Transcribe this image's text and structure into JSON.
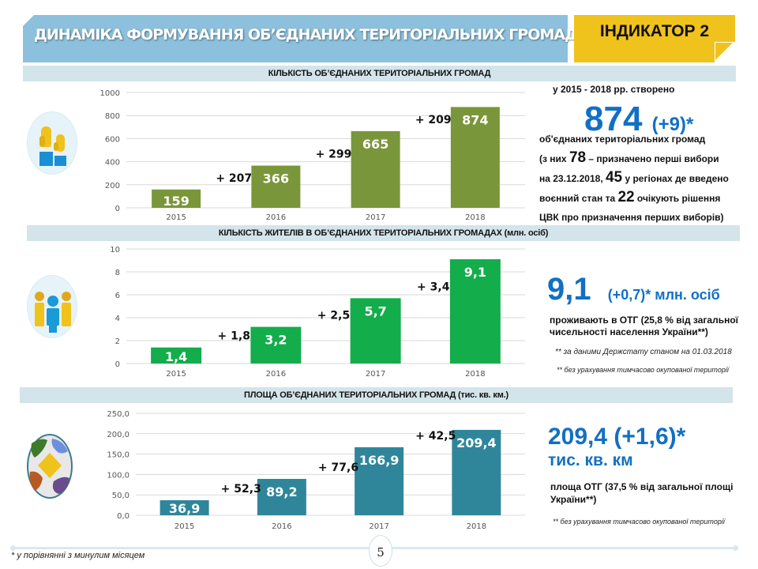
{
  "header": {
    "title": "ДИНАМІКА ФОРМУВАННЯ ОБ’ЄДНАНИХ ТЕРИТОРІАЛЬНИХ ГРОМАД",
    "indicator": "ІНДИКАТОР 2"
  },
  "colors": {
    "banner": "#8cc0dc",
    "indicator": "#f0c21c",
    "section_bar": "#d3e4eb",
    "accent_blue": "#1270c4",
    "bar_olive": "#7a963a",
    "bar_green": "#13ad4b",
    "bar_teal": "#2f869b"
  },
  "sections": [
    {
      "heading": "КІЛЬКІСТЬ ОБ’ЄДНАНИХ ТЕРИТОРІАЛЬНИХ ГРОМАД",
      "icon": "raised-hands-icon",
      "summary": {
        "intro": "у 2015  - 2018  рр. створено",
        "big_value": "874",
        "big_delta": "(+9)*",
        "line1": "об'єднаних територіальних громад",
        "line2_pre": "(з них ",
        "line2_num": "78",
        "line2_post": " –  призначено перші вибори",
        "line3_pre": "на 23.12.2018,  ",
        "line3_num": "45",
        "line3_post": " у регіонах де введено",
        "line4_pre": "воєнний стан та ",
        "line4_num": "22",
        "line4_post": " очікують рішення",
        "line5": "ЦВК про призначення перших виборів)"
      }
    },
    {
      "heading": "КІЛЬКІСТЬ ЖИТЕЛІВ В ОБ’ЄДНАНИХ ТЕРИТОРІАЛЬНИХ ГРОМАДАХ (млн. осіб)",
      "icon": "people-group-icon",
      "summary": {
        "big_value": "9,1",
        "big_suffix": "(+0,7)* млн. осіб",
        "line1": "проживають в ОТГ (25,8 % від загальної",
        "line2": "чисельності  населення України**)",
        "note1": "** за даними Держстату станом на 01.03.2018",
        "note2": "** без урахування тимчасово окупованої території"
      }
    },
    {
      "heading": "ПЛОЩА ОБ’ЄДНАНИХ ТЕРИТОРІАЛЬНИХ ГРОМАД (тис. кв. км.)",
      "icon": "puzzle-map-icon",
      "summary": {
        "big_value": "209,4 (+1,6)*",
        "big_unit": "тис. кв. км",
        "line1": "площа ОТГ (37,5 % від загальної площі",
        "line2": "України**)",
        "note1": "** без урахування тимчасово окупованої території"
      }
    }
  ],
  "chart_data": [
    {
      "type": "bar",
      "title": "КІЛЬКІСТЬ ОБ’ЄДНАНИХ ТЕРИТОРІАЛЬНИХ ГРОМАД",
      "categories": [
        "2015",
        "2016",
        "2017",
        "2018"
      ],
      "values": [
        159,
        366,
        665,
        874
      ],
      "value_labels": [
        "159",
        "366",
        "665",
        "874"
      ],
      "annotations": [
        "+ 207",
        "+ 299",
        "+ 209"
      ],
      "yticks": [
        "0",
        "200",
        "400",
        "600",
        "800",
        "1000"
      ],
      "ylim": [
        0,
        1000
      ],
      "grid": true,
      "color": "#7a963a",
      "xlabel": "",
      "ylabel": ""
    },
    {
      "type": "bar",
      "title": "КІЛЬКІСТЬ ЖИТЕЛІВ В ОБ’ЄДНАНИХ ТЕРИТОРІАЛЬНИХ ГРОМАДАХ (млн. осіб)",
      "categories": [
        "2015",
        "2016",
        "2017",
        "2018"
      ],
      "values": [
        1.4,
        3.2,
        5.7,
        9.1
      ],
      "value_labels": [
        "1,4",
        "3,2",
        "5,7",
        "9,1"
      ],
      "annotations": [
        "+ 1,8",
        "+ 2,5",
        "+ 3,4"
      ],
      "yticks": [
        "0",
        "2",
        "4",
        "6",
        "8",
        "10"
      ],
      "ylim": [
        0,
        10
      ],
      "grid": true,
      "color": "#13ad4b",
      "xlabel": "",
      "ylabel": ""
    },
    {
      "type": "bar",
      "title": "ПЛОЩА ОБ’ЄДНАНИХ ТЕРИТОРІАЛЬНИХ ГРОМАД (тис. кв. км.)",
      "categories": [
        "2015",
        "2016",
        "2017",
        "2018"
      ],
      "values": [
        36.9,
        89.2,
        166.9,
        209.4
      ],
      "value_labels": [
        "36,9",
        "89,2",
        "166,9",
        "209,4"
      ],
      "annotations": [
        "+ 52,3",
        "+ 77,6",
        "+ 42,5"
      ],
      "yticks": [
        "0,0",
        "50,0",
        "100,0",
        "150,0",
        "200,0",
        "250,0"
      ],
      "ylim": [
        0,
        250
      ],
      "grid": true,
      "color": "#2f869b",
      "xlabel": "",
      "ylabel": ""
    }
  ],
  "footer": {
    "page_number": "5",
    "footnote": "* у порівнянні з минулим місяцем"
  }
}
